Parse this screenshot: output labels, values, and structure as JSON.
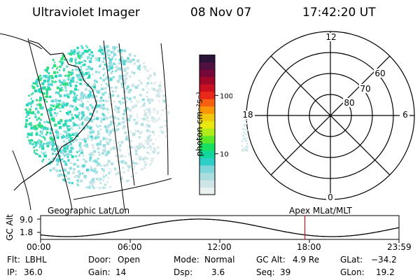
{
  "header": {
    "instrument": "Ultraviolet Imager",
    "date": "08 Nov 07",
    "time": "17:42:20 UT"
  },
  "colorbar": {
    "unit_label": "photon cm⁻²s⁻¹",
    "ticks": [
      {
        "value": 100,
        "label": "100"
      },
      {
        "value": 10,
        "label": "10"
      }
    ],
    "colors": [
      "#e8f0f0",
      "#cfe4e6",
      "#a9dde0",
      "#7fd6da",
      "#2fcdc8",
      "#10d89c",
      "#18e060",
      "#5ae828",
      "#b0ec18",
      "#e8e810",
      "#f0c810",
      "#f89808",
      "#f86010",
      "#e82818",
      "#c81020",
      "#a00828",
      "#780838",
      "#501040",
      "#2a1438"
    ]
  },
  "polar_plot": {
    "mlt_labels": {
      "top": "12",
      "left": "18",
      "right": "6",
      "bottom": "0"
    },
    "lat_labels": [
      "60",
      "70",
      "80"
    ]
  },
  "timeline": {
    "left_label": "Geographic Lat/Lon",
    "right_label": "Apex MLat/MLT",
    "y_axis_label": "GC Alt",
    "y_ticks": [
      "9.0",
      "1.8"
    ],
    "x_ticks": [
      "00:00",
      "06:00",
      "12:00",
      "18:00",
      "23:59"
    ],
    "current_time_hours": 17.7
  },
  "info": {
    "flt_label": "Flt:",
    "flt_value": "LBHL",
    "ip_label": "IP:",
    "ip_value": "36.0",
    "door_label": "Door:",
    "door_value": "Open",
    "gain_label": "Gain:",
    "gain_value": "14",
    "mode_label": "Mode:",
    "mode_value": "Normal",
    "dsp_label": "Dsp:",
    "dsp_value": "3.6",
    "gcalt_label": "GC Alt:",
    "gcalt_value": "4.9 Re",
    "seq_label": "Seq:",
    "seq_value": "39",
    "glat_label": "GLat:",
    "glat_value": "−34.2",
    "glon_label": "GLon:",
    "glon_value": "19.2"
  }
}
